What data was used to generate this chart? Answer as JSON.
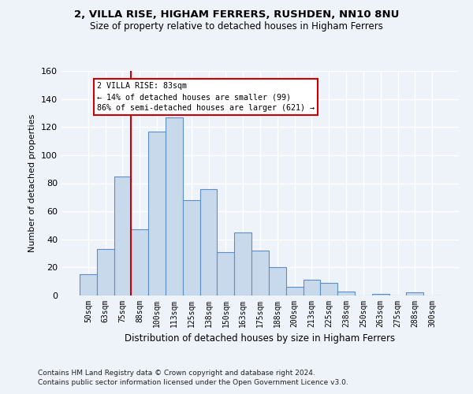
{
  "title1": "2, VILLA RISE, HIGHAM FERRERS, RUSHDEN, NN10 8NU",
  "title2": "Size of property relative to detached houses in Higham Ferrers",
  "xlabel": "Distribution of detached houses by size in Higham Ferrers",
  "ylabel": "Number of detached properties",
  "bar_labels": [
    "50sqm",
    "63sqm",
    "75sqm",
    "88sqm",
    "100sqm",
    "113sqm",
    "125sqm",
    "138sqm",
    "150sqm",
    "163sqm",
    "175sqm",
    "188sqm",
    "200sqm",
    "213sqm",
    "225sqm",
    "238sqm",
    "250sqm",
    "263sqm",
    "275sqm",
    "288sqm",
    "300sqm"
  ],
  "bar_values": [
    15,
    33,
    85,
    47,
    117,
    127,
    68,
    76,
    31,
    45,
    32,
    20,
    6,
    11,
    9,
    3,
    0,
    1,
    0,
    2,
    0
  ],
  "bar_color": "#c8d9ec",
  "bar_edge_color": "#5b8fc9",
  "vline_x": 2.5,
  "vline_color": "#cc0000",
  "annotation_text": "2 VILLA RISE: 83sqm\n← 14% of detached houses are smaller (99)\n86% of semi-detached houses are larger (621) →",
  "annotation_box_color": "#ffffff",
  "annotation_box_edge_color": "#cc0000",
  "ylim": [
    0,
    160
  ],
  "yticks": [
    0,
    20,
    40,
    60,
    80,
    100,
    120,
    140,
    160
  ],
  "footnote1": "Contains HM Land Registry data © Crown copyright and database right 2024.",
  "footnote2": "Contains public sector information licensed under the Open Government Licence v3.0.",
  "bg_color": "#eef2f9",
  "plot_bg_color": "#eef2f9"
}
